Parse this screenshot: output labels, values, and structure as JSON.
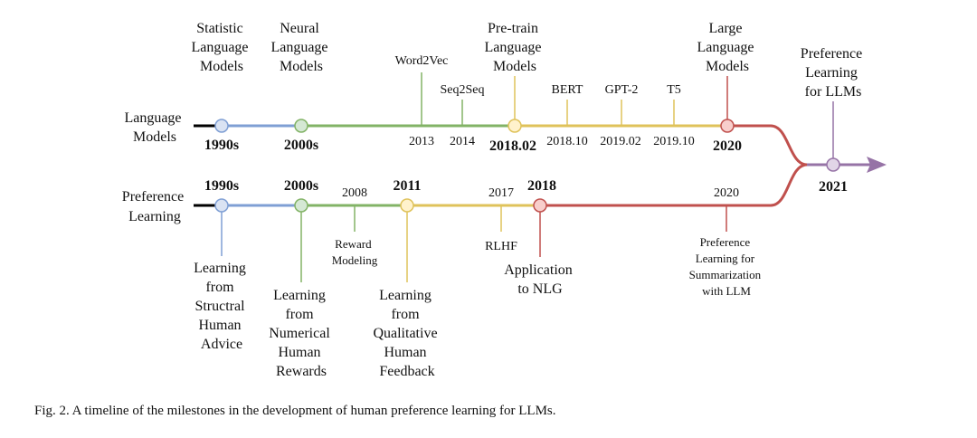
{
  "diagram": {
    "lm_row_label": [
      "Language",
      "Models"
    ],
    "pl_row_label": [
      "Preference",
      "Learning"
    ],
    "lm_era_1990s": "1990s",
    "lm_era_2000s": "2000s",
    "lm_era_201802": "2018.02",
    "lm_era_2020": "2020",
    "lm_top_statistic": [
      "Statistic",
      "Language",
      "Models"
    ],
    "lm_top_neural": [
      "Neural",
      "Language",
      "Models"
    ],
    "lm_top_pretrain": [
      "Pre-train",
      "Language",
      "Models"
    ],
    "lm_top_large": [
      "Large",
      "Language",
      "Models"
    ],
    "lm_word2vec": "Word2Vec",
    "lm_seq2seq": "Seq2Seq",
    "lm_bert": "BERT",
    "lm_gpt2": "GPT-2",
    "lm_t5": "T5",
    "lm_year_2013": "2013",
    "lm_year_2014": "2014",
    "lm_year_201810": "2018.10",
    "lm_year_201902": "2019.02",
    "lm_year_201910": "2019.10",
    "merge_label": [
      "Preference",
      "Learning",
      "for LLMs"
    ],
    "merge_year": "2021",
    "pl_era_1990s": "1990s",
    "pl_era_2000s": "2000s",
    "pl_era_2011": "2011",
    "pl_era_2018": "2018",
    "pl_year_2008": "2008",
    "pl_year_2017": "2017",
    "pl_year_2020": "2020",
    "pl_structral": [
      "Learning",
      "from",
      "Structral",
      "Human",
      "Advice"
    ],
    "pl_numerical": [
      "Learning",
      "from",
      "Numerical",
      "Human",
      "Rewards"
    ],
    "pl_reward_modeling": [
      "Reward",
      "Modeling"
    ],
    "pl_qualitative": [
      "Learning",
      "from",
      "Qualitative",
      "Human",
      "Feedback"
    ],
    "pl_rlhf": "RLHF",
    "pl_nlg": [
      "Application",
      "to NLG"
    ],
    "pl_summarization": [
      "Preference",
      "Learning for",
      "Summarization",
      "with LLM"
    ]
  },
  "colors": {
    "blue": "#7f9fd4",
    "blue_fill": "#dae3f3",
    "green": "#82b366",
    "green_fill": "#d5e8d4",
    "yellow": "#dfc25a",
    "yellow_fill": "#fff2cc",
    "red": "#c0504d",
    "red_fill": "#f8cecc",
    "purple": "#9673a6",
    "purple_fill": "#e1d5e7"
  },
  "caption": "Fig. 2.  A timeline of the milestones in the development of human preference learning for LLMs."
}
